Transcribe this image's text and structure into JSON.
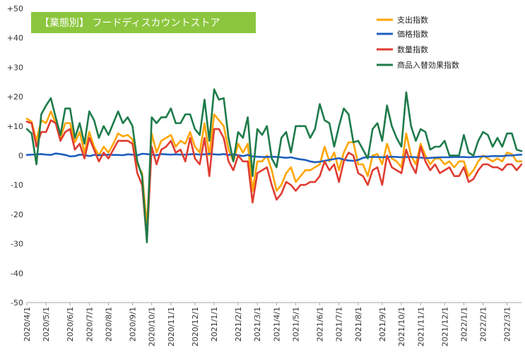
{
  "chart_data": {
    "type": "line",
    "title": "【業態別】 フードディスカウントストア",
    "ylim": [
      -50,
      50
    ],
    "y_ticks": [
      50,
      40,
      30,
      20,
      10,
      0,
      -10,
      -20,
      -30,
      -40,
      -50
    ],
    "y_tick_labels": [
      "+50",
      "+40",
      "+30",
      "+20",
      "+10",
      "0",
      "-10",
      "-20",
      "-30",
      "-40",
      "-50"
    ],
    "x_ticks": [
      {
        "i": 0,
        "label": "2020/4/1"
      },
      {
        "i": 4,
        "label": "2020/5/1"
      },
      {
        "i": 9,
        "label": "2020/6/1"
      },
      {
        "i": 13,
        "label": "2020/7/1"
      },
      {
        "i": 17,
        "label": "2020/8/1"
      },
      {
        "i": 22,
        "label": "2020/9/1"
      },
      {
        "i": 26,
        "label": "2020/10/1"
      },
      {
        "i": 30,
        "label": "2020/11/1"
      },
      {
        "i": 35,
        "label": "2020/12/1"
      },
      {
        "i": 39,
        "label": "2021/1/1"
      },
      {
        "i": 44,
        "label": "2021/2/1"
      },
      {
        "i": 48,
        "label": "2021/3/1"
      },
      {
        "i": 52,
        "label": "2021/4/1"
      },
      {
        "i": 56,
        "label": "2021/5/1"
      },
      {
        "i": 61,
        "label": "2021/6/1"
      },
      {
        "i": 65,
        "label": "2021/7/1"
      },
      {
        "i": 69,
        "label": "2021/8/1"
      },
      {
        "i": 74,
        "label": "2021/9/1"
      },
      {
        "i": 78,
        "label": "2021/10/1"
      },
      {
        "i": 82,
        "label": "2021/11/1"
      },
      {
        "i": 87,
        "label": "2021/12/1"
      },
      {
        "i": 91,
        "label": "2022/1/1"
      },
      {
        "i": 95,
        "label": "2022/2/1"
      },
      {
        "i": 100,
        "label": "2022/3/1"
      }
    ],
    "legend_position": "top-right",
    "grid": false,
    "series": [
      {
        "name": "支出指数",
        "color": "#ffa500",
        "values": [
          12.5,
          11.5,
          5,
          12,
          11,
          15,
          11,
          6,
          11,
          11,
          4.5,
          8,
          1,
          8,
          3,
          0,
          3,
          1,
          4,
          7.5,
          6.5,
          7,
          5.5,
          -3,
          -6,
          -24,
          7.5,
          1,
          5,
          6,
          7,
          3,
          5,
          4,
          8,
          3,
          1,
          11,
          0,
          14,
          12,
          10,
          2,
          -2,
          4,
          1,
          4,
          -12,
          -2,
          -2,
          0,
          -5,
          -12,
          -10,
          -6,
          -4,
          -9,
          -7,
          -5,
          -5,
          -4,
          -3,
          3,
          -2,
          1,
          -5,
          1,
          4.5,
          4.5,
          -3,
          -3,
          -7,
          0,
          0.5,
          -3,
          4,
          -1,
          -2,
          -4,
          7.5,
          0,
          -3,
          4,
          0,
          -3,
          -1,
          -1,
          -3,
          -2,
          -4,
          -2,
          -2,
          -7,
          -5,
          -2,
          0,
          -1,
          -2,
          -1,
          -2,
          1,
          0.5,
          -2,
          -2
        ]
      },
      {
        "name": "価格指数",
        "color": "#1f5fbf",
        "values": [
          0.2,
          0.3,
          0.4,
          0.5,
          0.3,
          0.2,
          0.7,
          0.5,
          0.2,
          -0.3,
          -0.2,
          0.3,
          0.2,
          -0.2,
          0.2,
          0.1,
          0.2,
          0.3,
          0.2,
          0.2,
          0.1,
          0.4,
          0.3,
          0.1,
          0.6,
          0.5,
          0.3,
          0.1,
          0.5,
          0.4,
          0.3,
          0.4,
          0.3,
          0.3,
          0.4,
          0.5,
          0.3,
          0.4,
          0.6,
          0.4,
          0.3,
          0.5,
          0.2,
          0.4,
          0.1,
          -0.2,
          0.2,
          -0.3,
          -0.4,
          -0.5,
          -0.5,
          -0.4,
          -0.5,
          -0.6,
          -0.8,
          -0.6,
          -1,
          -1.3,
          -1.5,
          -2,
          -2.3,
          -2.1,
          -1.8,
          -1.5,
          -1.2,
          -0.9,
          -1.4,
          -1.7,
          -1.8,
          -1.5,
          -0.8,
          -0.5,
          -0.5,
          -0.5,
          -0.6,
          -0.5,
          -0.4,
          -0.5,
          -0.6,
          -0.5,
          -0.5,
          -0.6,
          -0.7,
          -0.9,
          -0.8,
          -0.7,
          -0.6,
          -0.6,
          -0.6,
          -0.5,
          -0.5,
          -0.5,
          -0.6,
          -0.5,
          -0.4,
          -0.3,
          -0.3,
          -0.2,
          -0.2,
          -0.2,
          0,
          0,
          0.2,
          0.3
        ]
      },
      {
        "name": "数量指数",
        "color": "#e03c31",
        "values": [
          11.5,
          11,
          3,
          8,
          8,
          12,
          11,
          5,
          8,
          9,
          2,
          4,
          -1,
          6,
          2,
          -2,
          1,
          -1,
          2,
          5,
          5,
          5,
          4,
          -6,
          -10,
          -29,
          3,
          -3,
          2,
          3,
          5,
          1,
          2,
          -2,
          6,
          -1,
          -3,
          6,
          -7,
          9,
          9,
          6,
          -2,
          -5,
          0,
          -2,
          -2,
          -16,
          -6,
          -5,
          -4,
          -10,
          -15,
          -13,
          -9,
          -10,
          -12,
          -10,
          -10,
          -9,
          -9,
          -7,
          -2,
          -5,
          -3,
          -9,
          -2,
          1,
          0,
          -6,
          -7,
          -10,
          -5,
          -4,
          -10,
          0,
          -4,
          -5,
          -6,
          2,
          -3,
          -6,
          3,
          -2,
          -5,
          -3,
          -6,
          -5,
          -4,
          -7,
          -7,
          -4,
          -9,
          -8,
          -5,
          -3,
          -3,
          -4,
          -4,
          -5,
          -3,
          -3,
          -5,
          -3
        ]
      },
      {
        "name": "商品入替効果指数",
        "color": "#1e7b4a",
        "values": [
          9,
          7.5,
          -3,
          14,
          17,
          19.5,
          13,
          7,
          16,
          16,
          6,
          11,
          4,
          15,
          12,
          6,
          10,
          7,
          11,
          15,
          11,
          13,
          10,
          -2,
          -7,
          -29.5,
          13,
          11,
          13,
          13,
          16,
          11,
          11,
          14,
          14,
          9,
          7,
          19,
          5,
          22.5,
          19,
          19.5,
          6,
          -2,
          8,
          6,
          13,
          -7,
          9,
          7,
          10,
          -1,
          -4,
          6,
          8,
          1,
          10,
          10,
          10,
          6,
          9,
          17.5,
          12,
          11,
          3,
          10,
          16,
          14,
          4.5,
          5,
          2,
          -1,
          9,
          11,
          5,
          17,
          10,
          6,
          3,
          21.5,
          10,
          5,
          9,
          8,
          2,
          3,
          3,
          5,
          0,
          0,
          0,
          7,
          1,
          0,
          5,
          8,
          7,
          3,
          6,
          3,
          7.5,
          7.5,
          2,
          1.5
        ]
      }
    ]
  }
}
